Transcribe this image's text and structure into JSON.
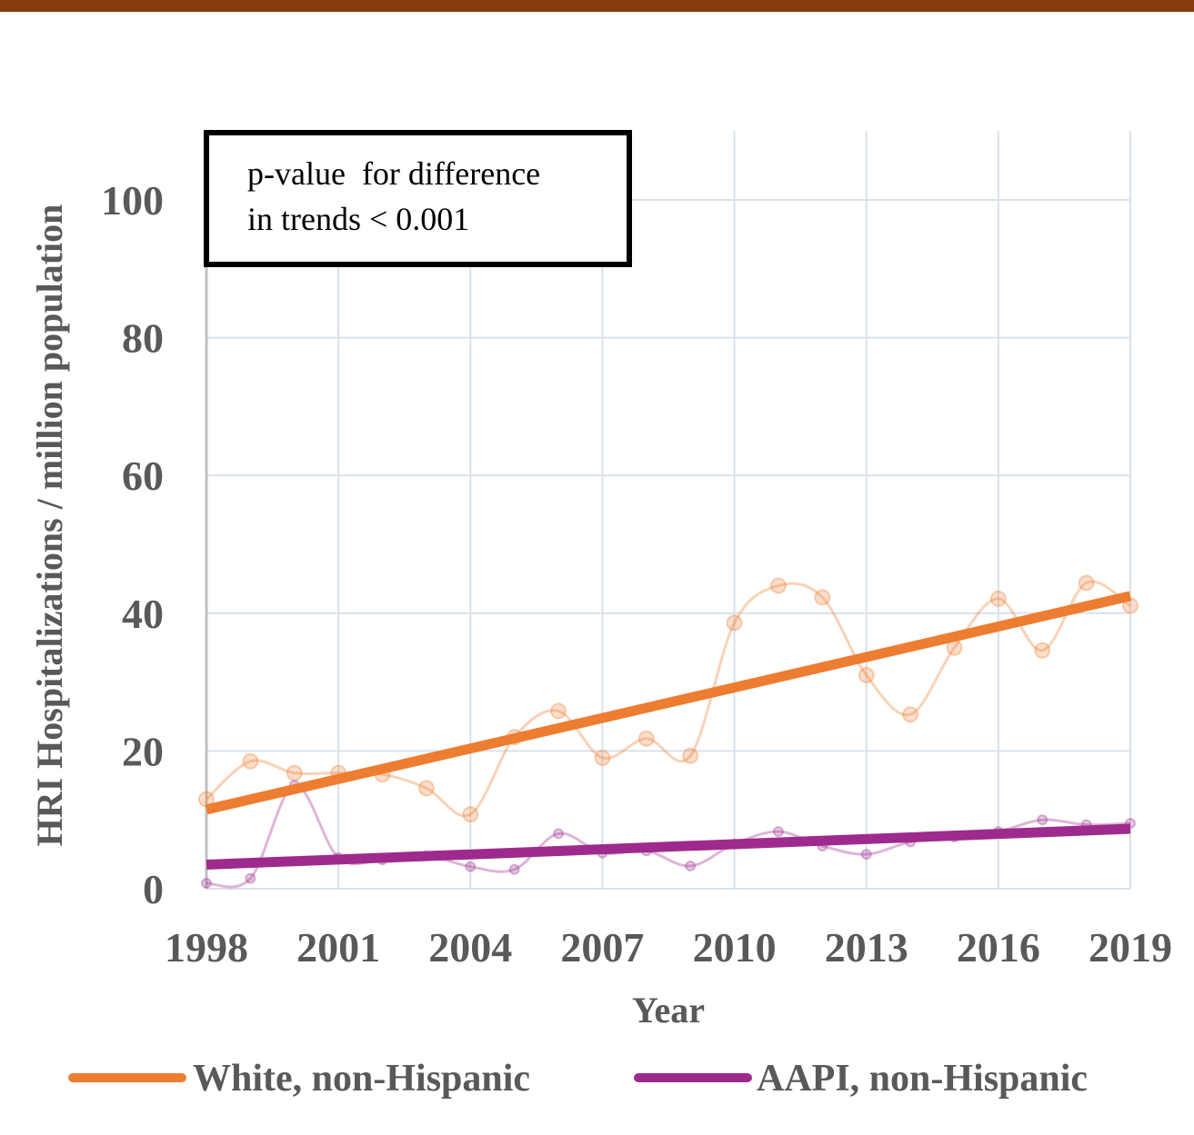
{
  "colors": {
    "top_bar": "#843C0C",
    "white_series": "#ED7D31",
    "aapi_series": "#9E2A8E",
    "grid": "#D9E1EA",
    "text": "#595959"
  },
  "annotation": {
    "line1": "p-value  for difference",
    "line2": "in trends < 0.001"
  },
  "chart_data": {
    "type": "line",
    "xlabel": "Year",
    "ylabel": "HRI Hospitalizations / million population",
    "xlim": [
      1998,
      2019
    ],
    "ylim": [
      0,
      110
    ],
    "x_ticks": [
      1998,
      2001,
      2004,
      2007,
      2010,
      2013,
      2016,
      2019
    ],
    "x_tick_labels": [
      "1998",
      "2001",
      "2004",
      "2007",
      "2010",
      "2013",
      "2016",
      "2019"
    ],
    "y_ticks": [
      0,
      20,
      40,
      60,
      80,
      100
    ],
    "y_tick_labels": [
      "0",
      "20",
      "40",
      "60",
      "80",
      "100"
    ],
    "grid": true,
    "legend_position": "bottom",
    "series": [
      {
        "name": "White, non-Hispanic",
        "x": [
          1998,
          1999,
          2000,
          2001,
          2002,
          2003,
          2004,
          2005,
          2006,
          2007,
          2008,
          2009,
          2010,
          2011,
          2012,
          2013,
          2014,
          2015,
          2016,
          2017,
          2018,
          2019
        ],
        "values": [
          13.0,
          18.5,
          16.8,
          16.8,
          16.6,
          14.6,
          10.8,
          22.0,
          25.8,
          19.0,
          21.8,
          19.3,
          38.6,
          44.0,
          42.3,
          31.0,
          25.3,
          35.0,
          42.1,
          34.6,
          44.4,
          41.1
        ],
        "trend": [
          11.5,
          42.5
        ]
      },
      {
        "name": "AAPI, non-Hispanic",
        "x": [
          1998,
          1999,
          2000,
          2001,
          2002,
          2003,
          2004,
          2005,
          2006,
          2007,
          2008,
          2009,
          2010,
          2011,
          2012,
          2013,
          2014,
          2015,
          2016,
          2017,
          2018,
          2019
        ],
        "values": [
          0.8,
          1.5,
          15.0,
          4.5,
          4.2,
          4.8,
          3.2,
          2.8,
          8.0,
          5.2,
          5.5,
          3.3,
          6.5,
          8.3,
          6.2,
          5.0,
          6.8,
          7.5,
          8.3,
          10.0,
          9.3,
          9.5
        ],
        "trend": [
          3.5,
          8.7
        ]
      }
    ]
  }
}
